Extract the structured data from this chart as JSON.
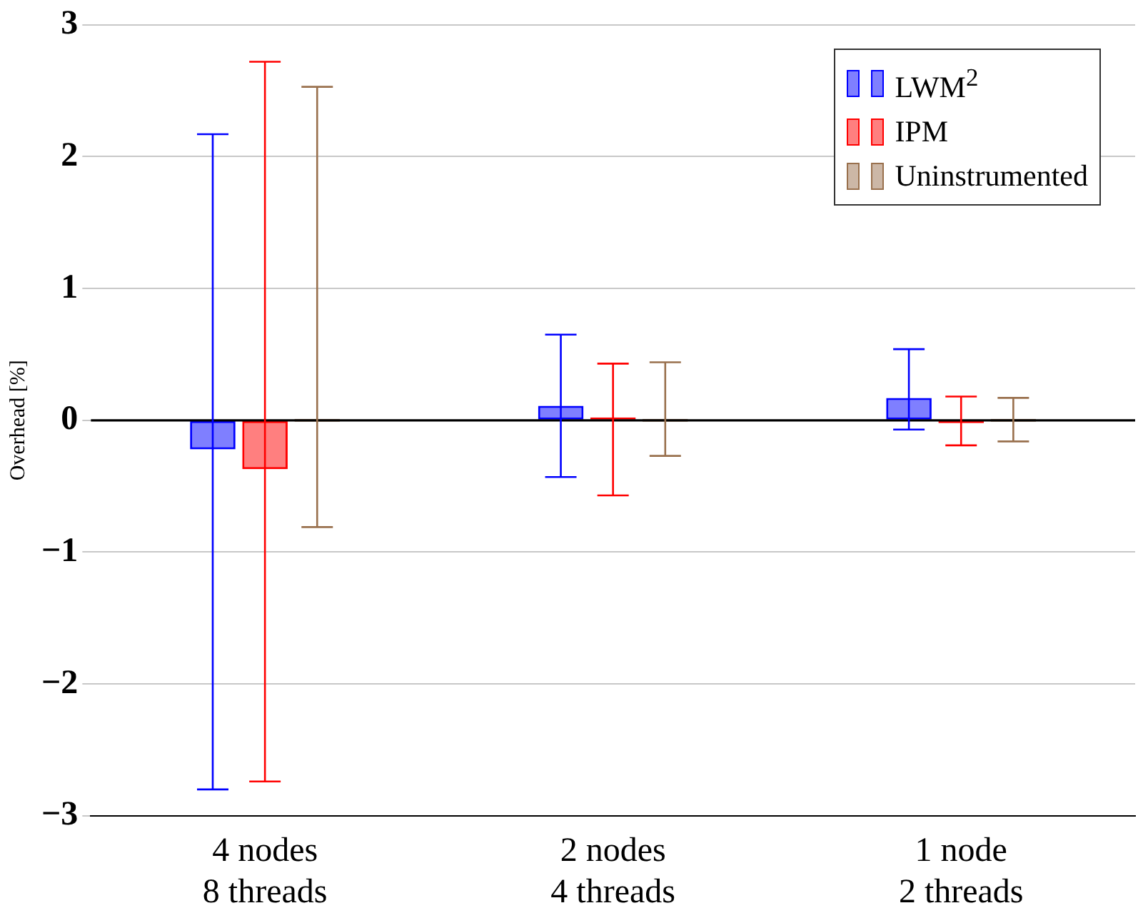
{
  "chart_data": {
    "type": "bar",
    "ylabel": "Overhead [%]",
    "categories": [
      "4 nodes\n8 threads",
      "2 nodes\n4 threads",
      "1 node\n2 threads"
    ],
    "series": [
      {
        "name": "LWM$^{2}$",
        "color": "#0000ff",
        "values": [
          -0.22,
          0.11,
          0.17
        ],
        "errors": [
          [
            -2.8,
            2.17
          ],
          [
            -0.43,
            0.65
          ],
          [
            -0.07,
            0.54
          ]
        ]
      },
      {
        "name": "IPM",
        "color": "#ff0000",
        "values": [
          -0.37,
          0.01,
          -0.01
        ],
        "errors": [
          [
            -2.74,
            2.72
          ],
          [
            -0.57,
            0.43
          ],
          [
            -0.19,
            0.18
          ]
        ]
      },
      {
        "name": "Uninstrumented",
        "color": "#99704d",
        "values": [
          0,
          0,
          0
        ],
        "errors": [
          [
            -0.81,
            2.53
          ],
          [
            -0.27,
            0.44
          ],
          [
            -0.16,
            0.17
          ]
        ]
      }
    ],
    "ylim": [
      -3,
      3
    ],
    "yticks": [
      -3,
      -2,
      -1,
      0,
      1,
      2,
      3
    ],
    "ref_lines": [
      {
        "axis": "y",
        "value": 0,
        "color": "#000000"
      }
    ],
    "grid": "y",
    "legend": "top right"
  }
}
